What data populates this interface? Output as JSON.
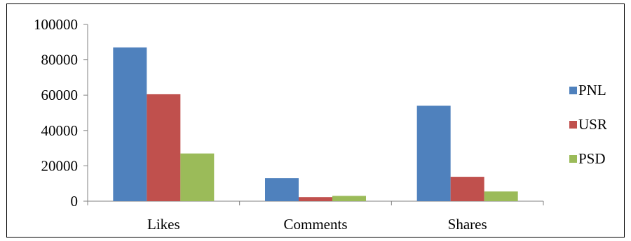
{
  "caption": "",
  "chart_data": {
    "type": "bar",
    "title": "",
    "xlabel": "",
    "ylabel": "",
    "categories": [
      "Likes",
      "Comments",
      "Shares"
    ],
    "ylim": [
      0,
      100000
    ],
    "yticks": [
      0,
      20000,
      40000,
      60000,
      80000,
      100000
    ],
    "grid": false,
    "legend_position": "right",
    "series": [
      {
        "name": "PNL",
        "color": "#4F81BD",
        "values": [
          87000,
          13000,
          54000
        ]
      },
      {
        "name": "USR",
        "color": "#C0504D",
        "values": [
          60500,
          2300,
          13800
        ]
      },
      {
        "name": "PSD",
        "color": "#9BBB59",
        "values": [
          27000,
          3000,
          5500
        ]
      }
    ]
  }
}
